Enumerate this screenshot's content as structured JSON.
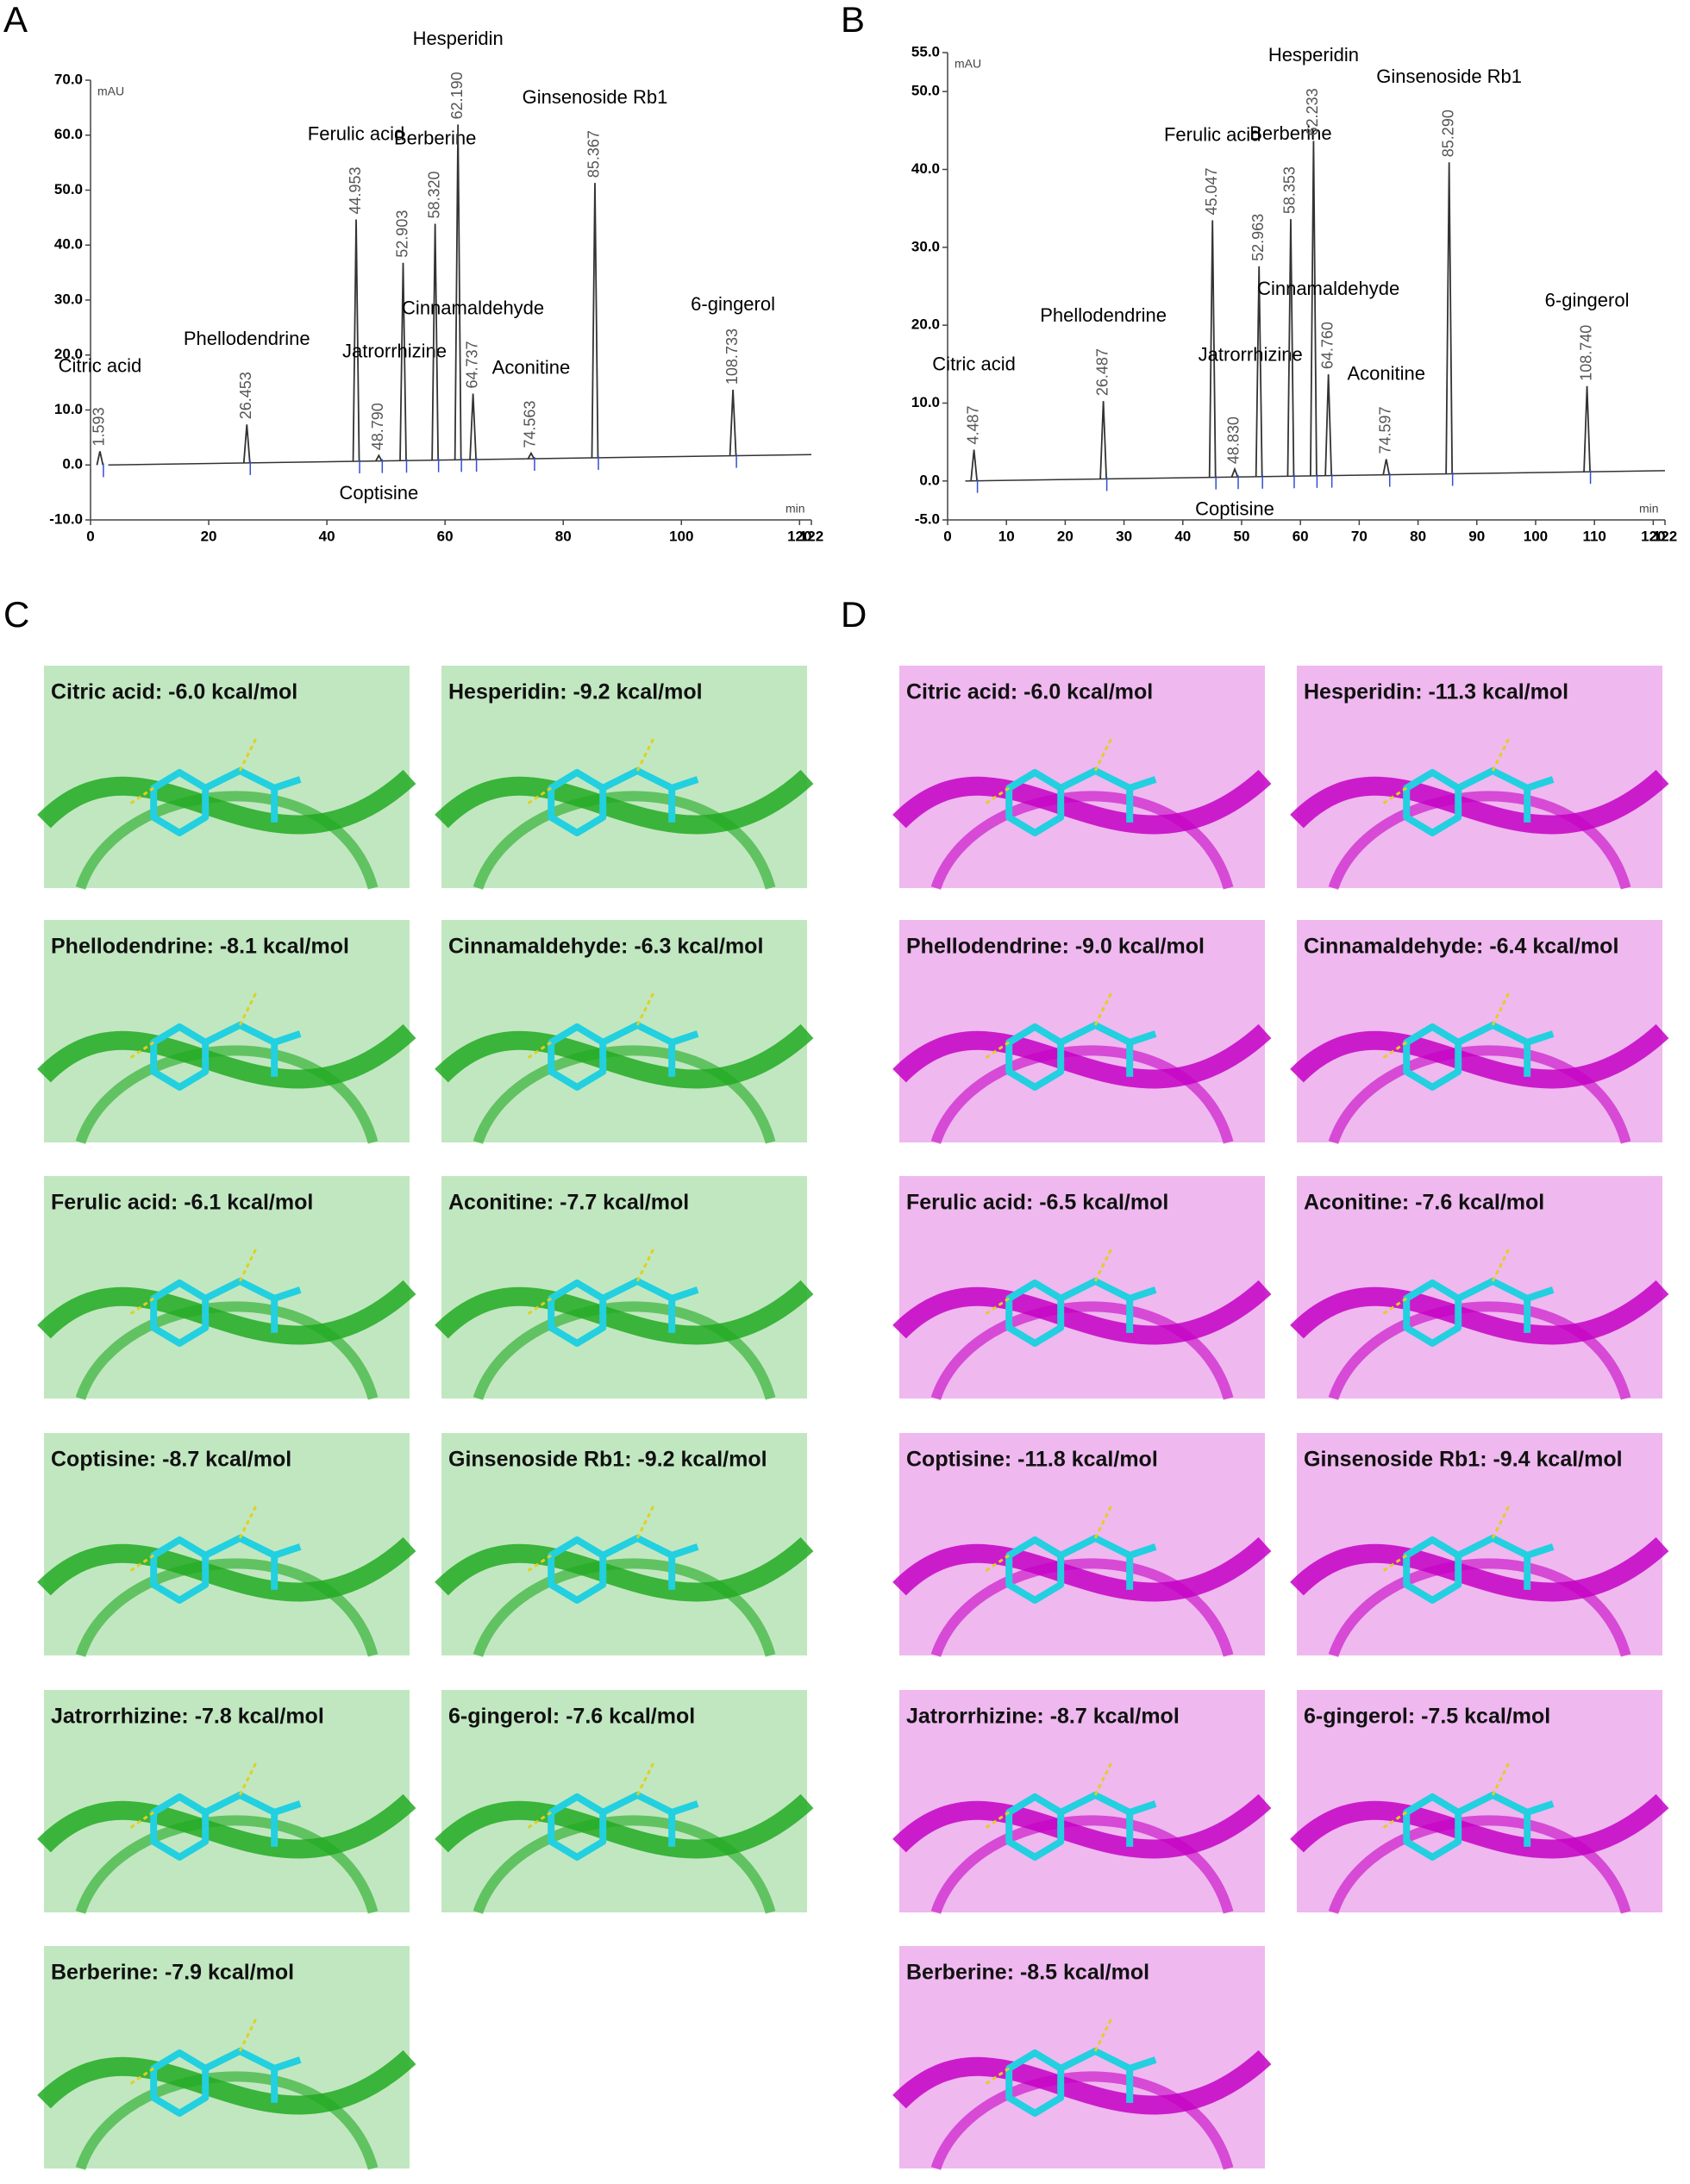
{
  "chart_data": [
    {
      "type": "chromatogram",
      "panel": "A",
      "y_unit": "mAU",
      "x_unit": "min",
      "color": "#333333",
      "xlim": [
        0,
        122
      ],
      "xticks": [
        0,
        20,
        40,
        60,
        80,
        100,
        120,
        122
      ],
      "ylim": [
        -10,
        70
      ],
      "yticks": [
        {
          "value": -10,
          "label": "-10.0"
        },
        {
          "value": 0,
          "label": "0.0"
        },
        {
          "value": 10,
          "label": "10.0"
        },
        {
          "value": 20,
          "label": "20.0"
        },
        {
          "value": 30,
          "label": "30.0"
        },
        {
          "value": 40,
          "label": "40.0"
        },
        {
          "value": 50,
          "label": "50.0"
        },
        {
          "value": 60,
          "label": "60.0"
        },
        {
          "value": 70,
          "label": "70.0"
        }
      ],
      "peaks": {
        "x": [
          1.593,
          26.453,
          44.953,
          48.79,
          52.903,
          58.32,
          62.19,
          64.737,
          74.563,
          85.367,
          108.733
        ],
        "x_labels": [
          "1.593",
          "26.453",
          "44.953",
          "48.790",
          "52.903",
          "58.320",
          "62.190",
          "64.737",
          "74.563",
          "85.367",
          "108.733"
        ],
        "values": [
          2.5,
          7,
          44,
          1,
          36,
          43,
          61,
          12,
          1,
          50,
          12
        ],
        "compounds": [
          "Citric acid",
          "Phellodendrine",
          "Ferulic acid",
          "Coptisine",
          "Jatrorrhizine",
          "Berberine",
          "Hesperidin",
          "Cinnamaldehyde",
          "Aconitine",
          "Ginsenoside Rb1",
          "6-gingerol"
        ]
      }
    },
    {
      "type": "chromatogram",
      "panel": "B",
      "y_unit": "mAU",
      "x_unit": "min",
      "color": "#333333",
      "xlim": [
        0,
        122
      ],
      "xticks": [
        0,
        10,
        20,
        30,
        40,
        50,
        60,
        70,
        80,
        90,
        100,
        110,
        120,
        122
      ],
      "ylim": [
        -5,
        55
      ],
      "yticks": [
        {
          "value": -5,
          "label": "-5.0"
        },
        {
          "value": 0,
          "label": "0.0"
        },
        {
          "value": 10,
          "label": "10.0"
        },
        {
          "value": 20,
          "label": "20.0"
        },
        {
          "value": 30,
          "label": "30.0"
        },
        {
          "value": 40,
          "label": "40.0"
        },
        {
          "value": 50,
          "label": "50.0"
        },
        {
          "value": 55,
          "label": "55.0"
        }
      ],
      "peaks": {
        "x": [
          4.487,
          26.487,
          45.047,
          48.83,
          52.963,
          58.353,
          62.233,
          64.76,
          74.597,
          85.29,
          108.74
        ],
        "x_labels": [
          "4.487",
          "26.487",
          "45.047",
          "48.830",
          "52.963",
          "58.353",
          "62.233",
          "64.760",
          "74.597",
          "85.290",
          "108.740"
        ],
        "values": [
          4,
          10,
          33,
          1,
          27,
          33,
          43,
          13,
          2,
          40,
          11
        ],
        "compounds": [
          "Citric acid",
          "Phellodendrine",
          "Ferulic acid",
          "Coptisine",
          "Jatrorrhizine",
          "Berberine",
          "Hesperidin",
          "Cinnamaldehyde",
          "Aconitine",
          "Ginsenoside Rb1",
          "6-gingerol"
        ]
      }
    }
  ],
  "docking": [
    {
      "panel": "C",
      "color": "#22aa22",
      "tiles": [
        "Citric acid: -6.0 kcal/mol",
        "Phellodendrine: -8.1 kcal/mol",
        "Ferulic acid: -6.1 kcal/mol",
        "Coptisine: -8.7 kcal/mol",
        "Jatrorrhizine: -7.8 kcal/mol",
        "Berberine: -7.9 kcal/mol",
        "Hesperidin: -9.2 kcal/mol",
        "Cinnamaldehyde: -6.3 kcal/mol",
        "Aconitine: -7.7 kcal/mol",
        "Ginsenoside Rb1: -9.2 kcal/mol",
        "6-gingerol: -7.6 kcal/mol"
      ]
    },
    {
      "panel": "D",
      "color": "#c400c4",
      "tiles": [
        "Citric acid: -6.0 kcal/mol",
        "Phellodendrine: -9.0 kcal/mol",
        "Ferulic acid: -6.5 kcal/mol",
        "Coptisine: -11.8 kcal/mol",
        "Jatrorrhizine: -8.7 kcal/mol",
        "Berberine: -8.5 kcal/mol",
        "Hesperidin: -11.3 kcal/mol",
        "Cinnamaldehyde: -6.4 kcal/mol",
        "Aconitine: -7.6 kcal/mol",
        "Ginsenoside Rb1: -9.4 kcal/mol",
        "6-gingerol: -7.5 kcal/mol"
      ]
    }
  ]
}
